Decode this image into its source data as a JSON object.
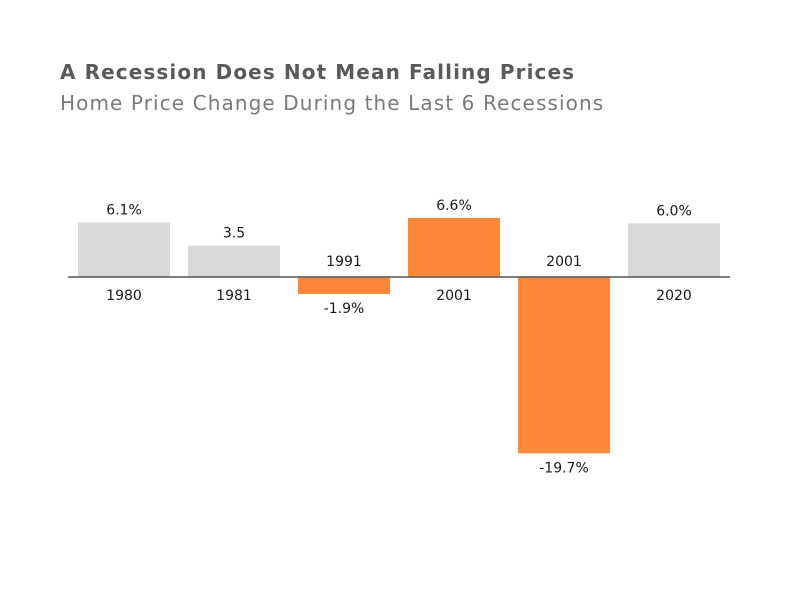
{
  "header": {
    "title": "A Recession Does Not Mean Falling Prices",
    "subtitle": "Home Price Change During the Last 6 Recessions"
  },
  "colors": {
    "neutral_bar": "#d9d9da",
    "highlight_bar": "#ff8838",
    "axis_line": "#555555",
    "title_text": "#5a5a5a",
    "subtitle_text": "#7a7a7a",
    "label_text": "#1a1a1a"
  },
  "chart_data": {
    "type": "bar",
    "title": "A Recession Does Not Mean Falling Prices",
    "subtitle": "Home Price Change During the Last 6 Recessions",
    "xlabel": "",
    "ylabel": "",
    "categories": [
      "1980",
      "1981",
      "1991",
      "2001",
      "2001",
      "2020"
    ],
    "values": [
      6.1,
      3.5,
      -1.9,
      6.6,
      -19.7,
      6.0
    ],
    "value_labels": [
      "6.1%",
      "3.5",
      "-1.9%",
      "6.6%",
      "-19.7%",
      "6.0%"
    ],
    "highlighted": [
      false,
      false,
      true,
      true,
      true,
      false
    ],
    "ylim": [
      -21,
      8
    ],
    "grid": false,
    "legend": "none"
  }
}
